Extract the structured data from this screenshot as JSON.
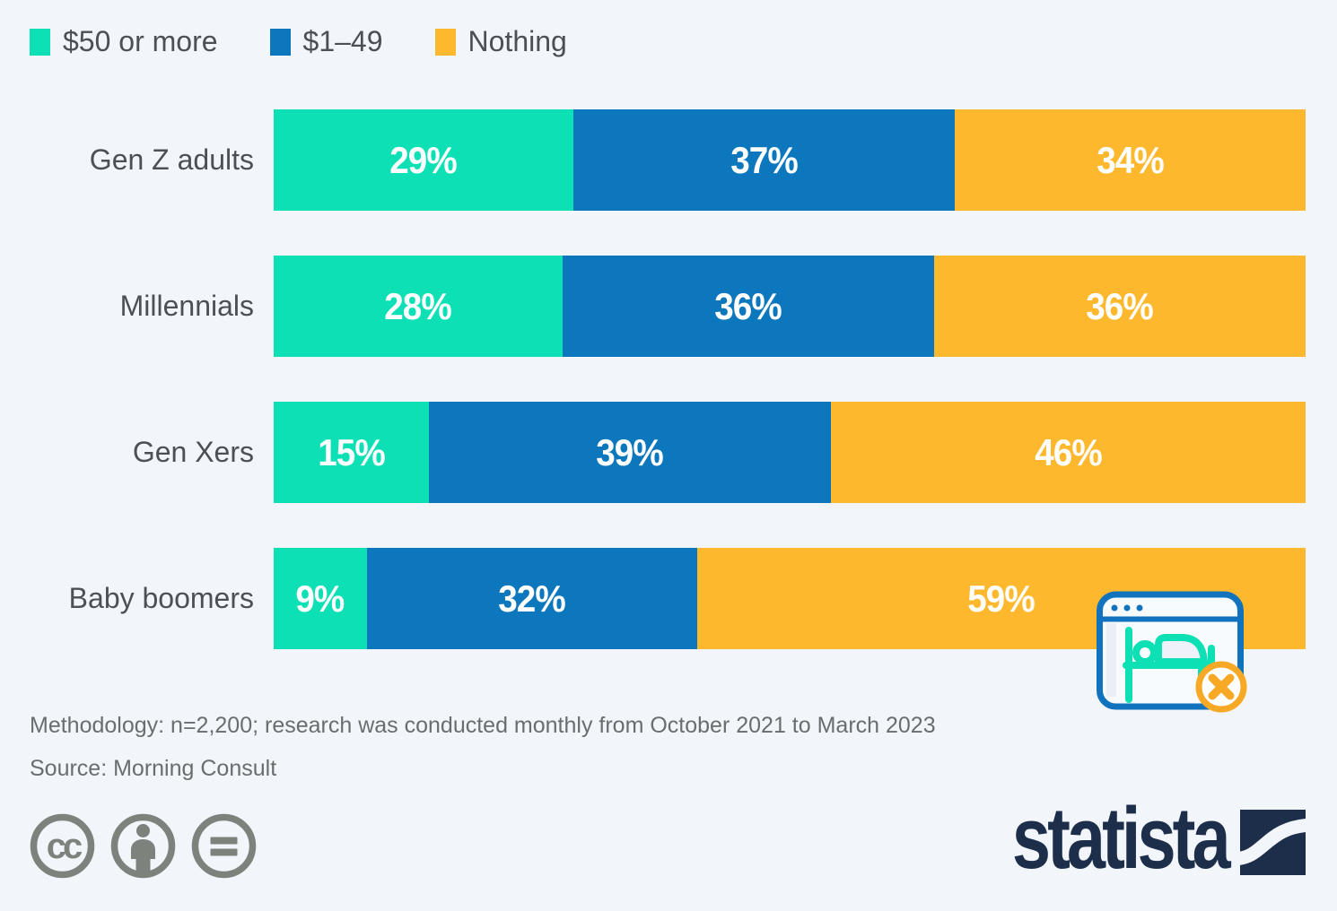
{
  "page": {
    "background": "#f2f5f9"
  },
  "colors": {
    "teal": "#0de0b4",
    "blue": "#0c77bd",
    "amber": "#fdb82d",
    "label_text": "#4c5054",
    "footnote_text": "#696d70",
    "percent_text": "#ffffff",
    "logo_navy": "#1c2e4a",
    "license_gray": "#7d827d"
  },
  "legend": {
    "items": [
      {
        "label": "$50 or more",
        "color": "#0de0b4"
      },
      {
        "label": "$1–49",
        "color": "#0c77bd"
      },
      {
        "label": "Nothing",
        "color": "#fdb82d"
      }
    ]
  },
  "chart_data": {
    "type": "bar",
    "orientation": "horizontal",
    "stacked": true,
    "unit": "%",
    "xlim": [
      0,
      100
    ],
    "grid": false,
    "legend_position": "top-left",
    "categories": [
      "Gen Z adults",
      "Millennials",
      "Gen Xers",
      "Baby boomers"
    ],
    "series": [
      {
        "name": "$50 or more",
        "color": "#0de0b4",
        "values": [
          29,
          28,
          15,
          9
        ]
      },
      {
        "name": "$1–49",
        "color": "#0c77bd",
        "values": [
          37,
          36,
          39,
          32
        ]
      },
      {
        "name": "Nothing",
        "color": "#fdb82d",
        "values": [
          34,
          36,
          46,
          59
        ]
      }
    ],
    "rows": [
      {
        "label": "Gen Z adults",
        "segments": [
          {
            "text": "29%",
            "value": 29,
            "color": "#0de0b4"
          },
          {
            "text": "37%",
            "value": 37,
            "color": "#0c77bd"
          },
          {
            "text": "34%",
            "value": 34,
            "color": "#fdb82d"
          }
        ]
      },
      {
        "label": "Millennials",
        "segments": [
          {
            "text": "28%",
            "value": 28,
            "color": "#0de0b4"
          },
          {
            "text": "36%",
            "value": 36,
            "color": "#0c77bd"
          },
          {
            "text": "36%",
            "value": 36,
            "color": "#fdb82d"
          }
        ]
      },
      {
        "label": "Gen Xers",
        "segments": [
          {
            "text": "15%",
            "value": 15,
            "color": "#0de0b4"
          },
          {
            "text": "39%",
            "value": 39,
            "color": "#0c77bd"
          },
          {
            "text": "46%",
            "value": 46,
            "color": "#fdb82d"
          }
        ]
      },
      {
        "label": "Baby boomers",
        "segments": [
          {
            "text": "9%",
            "value": 9,
            "color": "#0de0b4"
          },
          {
            "text": "32%",
            "value": 32,
            "color": "#0c77bd"
          },
          {
            "text": "59%",
            "value": 59,
            "color": "#fdb82d"
          }
        ]
      }
    ]
  },
  "footnotes": {
    "methodology": "Methodology: n=2,200; research was conducted monthly from October 2021 to March 2023",
    "source": "Source: Morning Consult"
  },
  "branding": {
    "logo_text": "statista"
  },
  "icons": {
    "license": [
      "cc-icon",
      "attribution-person-icon",
      "equals-icon"
    ],
    "overlay": "bed-browser-dismiss-icon"
  }
}
